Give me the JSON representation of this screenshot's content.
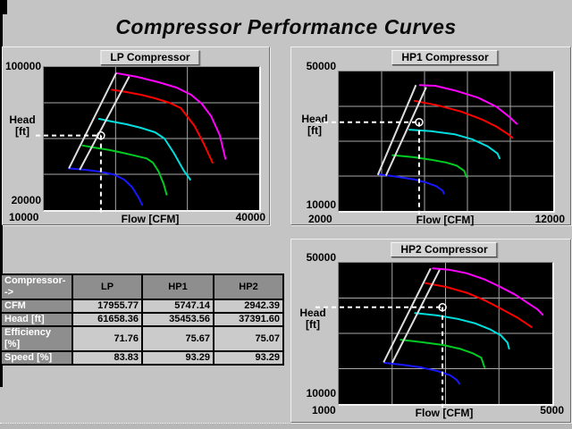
{
  "title": "Compressor Performance Curves",
  "colors": {
    "background": "#c4c4c4",
    "plot_background": "#000000",
    "grid": "#a8a8a8",
    "surge_line": "#dedede",
    "crosshair": "#ffffff",
    "blue": "#1818ff",
    "green": "#00cc22",
    "cyan": "#00dddd",
    "red": "#ff0000",
    "magenta": "#ff00ff"
  },
  "chart_data": [
    {
      "type": "line",
      "id": "lp",
      "title": "LP Compressor",
      "xlabel": "Flow [CFM]",
      "ylabel": "Head [ft]",
      "ylabel_lines": [
        "Head",
        "[ft]"
      ],
      "xlim": [
        10000,
        40000
      ],
      "ylim": [
        20000,
        100000
      ],
      "tick_labels": {
        "xmin": "10000",
        "xmax": "40000",
        "ymin": "20000",
        "ymax": "100000"
      },
      "grid_x": [
        20000,
        30000
      ],
      "grid_y": [
        40000,
        60000,
        80000
      ],
      "operating_point": {
        "flow_cfm": 17955.77,
        "head_ft": 61658.36
      },
      "surge_band": [
        [
          [
            13500,
            43300
          ],
          [
            20100,
            96700
          ]
        ],
        [
          [
            15000,
            42500
          ],
          [
            21900,
            94700
          ]
        ]
      ],
      "series": [
        {
          "name": "speed-line-1",
          "color": "#1818ff",
          "points": [
            [
              13500,
              43300
            ],
            [
              15500,
              42600
            ],
            [
              17800,
              41500
            ],
            [
              19800,
              39800
            ],
            [
              21200,
              37000
            ],
            [
              22300,
              32800
            ],
            [
              23200,
              27000
            ],
            [
              23700,
              22900
            ]
          ]
        },
        {
          "name": "speed-line-2",
          "color": "#00cc22",
          "points": [
            [
              15400,
              56100
            ],
            [
              17200,
              54800
            ],
            [
              19000,
              53700
            ],
            [
              21000,
              52000
            ],
            [
              22700,
              50400
            ],
            [
              24300,
              48900
            ],
            [
              25200,
              46500
            ],
            [
              26000,
              41500
            ],
            [
              26700,
              34500
            ],
            [
              27100,
              28700
            ]
          ]
        },
        {
          "name": "speed-line-3",
          "color": "#00dddd",
          "points": [
            [
              17700,
              71000
            ],
            [
              19500,
              69500
            ],
            [
              21500,
              68000
            ],
            [
              23500,
              66000
            ],
            [
              25500,
              63500
            ],
            [
              26800,
              60000
            ],
            [
              28100,
              52000
            ],
            [
              29500,
              42000
            ],
            [
              30400,
              37000
            ]
          ]
        },
        {
          "name": "speed-line-4",
          "color": "#ff0000",
          "points": [
            [
              19500,
              87300
            ],
            [
              21500,
              86000
            ],
            [
              23500,
              84500
            ],
            [
              25500,
              82500
            ],
            [
              27500,
              80000
            ],
            [
              29100,
              77000
            ],
            [
              31000,
              67000
            ],
            [
              32300,
              57000
            ],
            [
              33500,
              46500
            ]
          ]
        },
        {
          "name": "speed-line-5",
          "color": "#ff00ff",
          "points": [
            [
              20100,
              96600
            ],
            [
              23000,
              94500
            ],
            [
              26000,
              91500
            ],
            [
              28500,
              88500
            ],
            [
              30500,
              84500
            ],
            [
              32000,
              79500
            ],
            [
              33300,
              72500
            ],
            [
              34500,
              62000
            ],
            [
              35300,
              48700
            ]
          ]
        }
      ]
    },
    {
      "type": "line",
      "id": "hp1",
      "title": "HP1 Compressor",
      "xlabel": "Flow [CFM]",
      "ylabel": "Head [ft]",
      "ylabel_lines": [
        "Head",
        "[ft]"
      ],
      "xlim": [
        2000,
        12000
      ],
      "ylim": [
        10000,
        50000
      ],
      "tick_labels": {
        "xmin": "2000",
        "xmax": "12000",
        "ymin": "10000",
        "ymax": "50000"
      },
      "grid_x": [
        4000,
        6000,
        8000,
        10000
      ],
      "grid_y": [
        20000,
        30000,
        40000
      ],
      "operating_point": {
        "flow_cfm": 5747.14,
        "head_ft": 35453.56
      },
      "surge_band": [
        [
          [
            3820,
            20300
          ],
          [
            5600,
            46100
          ]
        ],
        [
          [
            4200,
            20100
          ],
          [
            6080,
            45500
          ]
        ]
      ],
      "series": [
        {
          "name": "speed-line-1",
          "color": "#1818ff",
          "points": [
            [
              3860,
              20500
            ],
            [
              4700,
              19800
            ],
            [
              5550,
              19000
            ],
            [
              6100,
              18100
            ],
            [
              6550,
              17100
            ],
            [
              6850,
              15800
            ],
            [
              6900,
              15000
            ]
          ]
        },
        {
          "name": "speed-line-2",
          "color": "#00cc22",
          "points": [
            [
              4510,
              26000
            ],
            [
              5500,
              25400
            ],
            [
              6300,
              24700
            ],
            [
              7000,
              23900
            ],
            [
              7500,
              23000
            ],
            [
              7850,
              21500
            ],
            [
              7950,
              19800
            ]
          ]
        },
        {
          "name": "speed-line-3",
          "color": "#00dddd",
          "points": [
            [
              5290,
              33300
            ],
            [
              6300,
              32900
            ],
            [
              7400,
              32000
            ],
            [
              8250,
              30500
            ],
            [
              8950,
              28500
            ],
            [
              9400,
              26500
            ],
            [
              9500,
              25100
            ]
          ]
        },
        {
          "name": "speed-line-4",
          "color": "#ff0000",
          "points": [
            [
              5530,
              41600
            ],
            [
              6600,
              40300
            ],
            [
              7700,
              38500
            ],
            [
              8650,
              36300
            ],
            [
              9350,
              34200
            ],
            [
              9900,
              32000
            ],
            [
              10100,
              31000
            ]
          ]
        },
        {
          "name": "speed-line-5",
          "color": "#ff00ff",
          "points": [
            [
              5780,
              46100
            ],
            [
              6500,
              45900
            ],
            [
              7400,
              44600
            ],
            [
              8500,
              42500
            ],
            [
              9350,
              39900
            ],
            [
              9970,
              36900
            ],
            [
              10300,
              35000
            ]
          ]
        }
      ]
    },
    {
      "type": "line",
      "id": "hp2",
      "title": "HP2 Compressor",
      "xlabel": "Flow [CFM]",
      "ylabel": "Head [ft]",
      "ylabel_lines": [
        "Head",
        "[ft]"
      ],
      "xlim": [
        1000,
        5000
      ],
      "ylim": [
        10000,
        50000
      ],
      "tick_labels": {
        "xmin": "1000",
        "xmax": "5000",
        "ymin": "10000",
        "ymax": "50000"
      },
      "grid_x": [
        2000,
        3000,
        4000
      ],
      "grid_y": [
        20000,
        30000,
        40000
      ],
      "operating_point": {
        "flow_cfm": 2942.39,
        "head_ft": 37391.6
      },
      "surge_band": [
        [
          [
            1840,
            21800
          ],
          [
            2720,
            48400
          ]
        ],
        [
          [
            2000,
            21650
          ],
          [
            2890,
            48000
          ]
        ]
      ],
      "series": [
        {
          "name": "speed-line-1",
          "color": "#1818ff",
          "points": [
            [
              1860,
              21650
            ],
            [
              2220,
              21050
            ],
            [
              2560,
              20300
            ],
            [
              2860,
              19300
            ],
            [
              3090,
              18100
            ],
            [
              3210,
              16800
            ],
            [
              3260,
              15750
            ]
          ]
        },
        {
          "name": "speed-line-2",
          "color": "#00cc22",
          "points": [
            [
              2160,
              28200
            ],
            [
              2560,
              27500
            ],
            [
              2950,
              26700
            ],
            [
              3280,
              25600
            ],
            [
              3510,
              24350
            ],
            [
              3670,
              23100
            ],
            [
              3730,
              20400
            ]
          ]
        },
        {
          "name": "speed-line-3",
          "color": "#00dddd",
          "points": [
            [
              2430,
              35750
            ],
            [
              2840,
              35100
            ],
            [
              3230,
              34100
            ],
            [
              3560,
              32800
            ],
            [
              3840,
              31100
            ],
            [
              4040,
              29400
            ],
            [
              4160,
              27400
            ],
            [
              4190,
              25700
            ]
          ]
        },
        {
          "name": "speed-line-4",
          "color": "#ff0000",
          "points": [
            [
              2620,
              44250
            ],
            [
              3000,
              43200
            ],
            [
              3400,
              41500
            ],
            [
              3730,
              39400
            ],
            [
              4060,
              36800
            ],
            [
              4340,
              34500
            ],
            [
              4610,
              31800
            ]
          ]
        },
        {
          "name": "speed-line-5",
          "color": "#ff00ff",
          "points": [
            [
              2760,
              48400
            ],
            [
              3060,
              48050
            ],
            [
              3400,
              47000
            ],
            [
              3730,
              45300
            ],
            [
              4010,
              43300
            ],
            [
              4290,
              41100
            ],
            [
              4510,
              38900
            ],
            [
              4720,
              36800
            ],
            [
              4820,
              35300
            ]
          ]
        }
      ]
    },
    {
      "type": "table",
      "header": [
        "Compressor-->",
        "LP",
        "HP1",
        "HP2"
      ],
      "rows": [
        {
          "label": "CFM",
          "values": [
            "17955.77",
            "5747.14",
            "2942.39"
          ]
        },
        {
          "label": "Head [ft]",
          "values": [
            "61658.36",
            "35453.56",
            "37391.60"
          ]
        },
        {
          "label": "Efficiency [%]",
          "values": [
            "71.76",
            "75.67",
            "75.07"
          ]
        },
        {
          "label": "Speed [%]",
          "values": [
            "83.83",
            "93.29",
            "93.29"
          ]
        }
      ]
    }
  ]
}
